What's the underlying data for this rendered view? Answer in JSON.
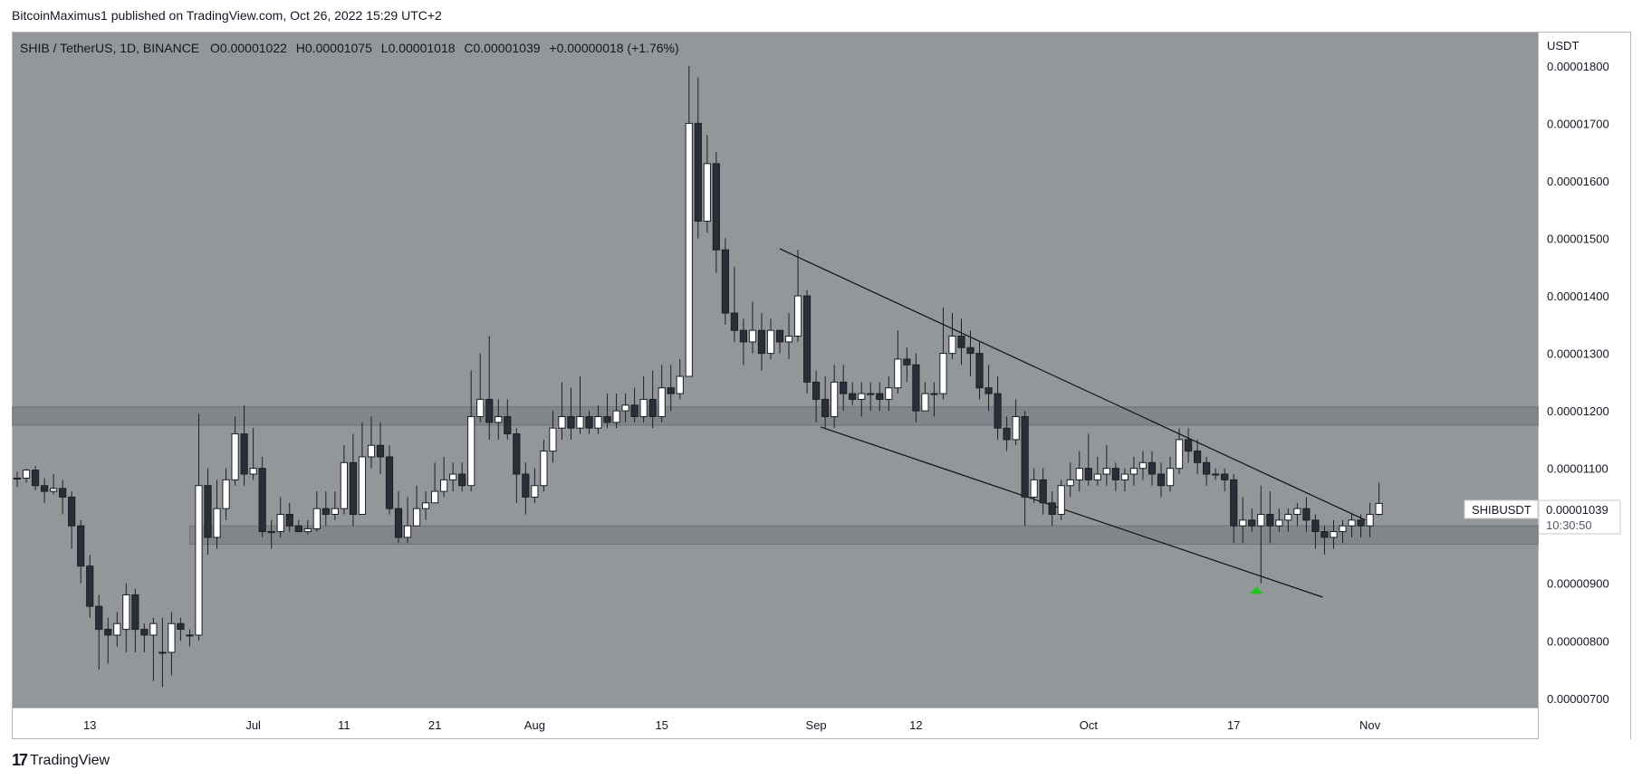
{
  "header": {
    "publisher_line": "BitcoinMaximus1 published on TradingView.com, Oct 26, 2022 15:29 UTC+2"
  },
  "legend": {
    "symbol": "SHIB / TetherUS, 1D, BINANCE",
    "o_label": "O",
    "o_value": "0.00001022",
    "h_label": "H",
    "h_value": "0.00001075",
    "l_label": "L",
    "l_value": "0.00001018",
    "c_label": "C",
    "c_value": "0.00001039",
    "change": "+0.00000018 (+1.76%)"
  },
  "price_tag": {
    "symbol": "SHIBUSDT",
    "price": "0.00001039",
    "countdown": "10:30:50"
  },
  "footer": {
    "logo_text": "TradingView"
  },
  "colors": {
    "background": "#949799",
    "up_fill": "#ffffff",
    "down_fill": "#2a2e39",
    "zone": "#7f8287",
    "line": "#111111",
    "arrow": "#22c322"
  },
  "chart_data": {
    "type": "candlestick",
    "y_axis_label": "USDT",
    "y_ticks": [
      "0.00001800",
      "0.00001700",
      "0.00001600",
      "0.00001500",
      "0.00001400",
      "0.00001300",
      "0.00001200",
      "0.00001100",
      "0.00001000",
      "0.00000900",
      "0.00000800",
      "0.00000700"
    ],
    "y_tick_values": [
      1.8e-05,
      1.7e-05,
      1.6e-05,
      1.5e-05,
      1.4e-05,
      1.3e-05,
      1.2e-05,
      1.1e-05,
      1e-05,
      9e-06,
      8e-06,
      7e-06
    ],
    "ylim": [
      6.84e-06,
      1.858e-05
    ],
    "x_ticks": [
      {
        "label": "13",
        "i": 8
      },
      {
        "label": "Jul",
        "i": 26
      },
      {
        "label": "11",
        "i": 36
      },
      {
        "label": "21",
        "i": 46
      },
      {
        "label": "Aug",
        "i": 57
      },
      {
        "label": "15",
        "i": 71
      },
      {
        "label": "Sep",
        "i": 88
      },
      {
        "label": "12",
        "i": 99
      },
      {
        "label": "Oct",
        "i": 118
      },
      {
        "label": "17",
        "i": 134
      },
      {
        "label": "Nov",
        "i": 149
      }
    ],
    "x_range": [
      -0.5,
      167.5
    ],
    "candles": [
      [
        1.083e-05,
        1.083e-05,
        1.094e-05,
        1.068e-05
      ],
      [
        1.083e-05,
        1.097e-05,
        1.099e-05,
        1.075e-05
      ],
      [
        1.097e-05,
        1.07e-05,
        1.104e-05,
        1.062e-05
      ],
      [
        1.07e-05,
        1.06e-05,
        1.083e-05,
        1.04e-05
      ],
      [
        1.06e-05,
        1.065e-05,
        1.09e-05,
        1.055e-05
      ],
      [
        1.065e-05,
        1.05e-05,
        1.08e-05,
        1.02e-05
      ],
      [
        1.05e-05,
        1e-05,
        1.06e-05,
        9.6e-06
      ],
      [
        1e-05,
        9.3e-06,
        1.01e-05,
        9e-06
      ],
      [
        9.3e-06,
        8.6e-06,
        9.5e-06,
        8.4e-06
      ],
      [
        8.6e-06,
        8.2e-06,
        8.8e-06,
        7.5e-06
      ],
      [
        8.2e-06,
        8.1e-06,
        8.4e-06,
        7.6e-06
      ],
      [
        8.1e-06,
        8.3e-06,
        8.5e-06,
        7.9e-06
      ],
      [
        8.2e-06,
        8.8e-06,
        9e-06,
        7.8e-06
      ],
      [
        8.8e-06,
        8.2e-06,
        8.9e-06,
        7.8e-06
      ],
      [
        8.2e-06,
        8.1e-06,
        8.3e-06,
        7.8e-06
      ],
      [
        8.1e-06,
        8.3e-06,
        8.4e-06,
        7.3e-06
      ],
      [
        7.8e-06,
        7.8e-06,
        8.4e-06,
        7.2e-06
      ],
      [
        7.8e-06,
        8.3e-06,
        8.5e-06,
        7.4e-06
      ],
      [
        8.3e-06,
        8.2e-06,
        8.4e-06,
        8e-06
      ],
      [
        8.1e-06,
        8.1e-06,
        8.2e-06,
        7.9e-06
      ],
      [
        8.1e-06,
        1.07e-05,
        1.195e-05,
        8e-06
      ],
      [
        1.07e-05,
        9.8e-06,
        1.1e-05,
        9.5e-06
      ],
      [
        9.8e-06,
        1.03e-05,
        1.08e-05,
        9.6e-06
      ],
      [
        1.03e-05,
        1.08e-05,
        1.1e-05,
        1.01e-05
      ],
      [
        1.08e-05,
        1.16e-05,
        1.19e-05,
        1.07e-05
      ],
      [
        1.16e-05,
        1.09e-05,
        1.21e-05,
        1.07e-05
      ],
      [
        1.09e-05,
        1.1e-05,
        1.17e-05,
        1.08e-05
      ],
      [
        1.1e-05,
        9.9e-06,
        1.12e-05,
        9.8e-06
      ],
      [
        9.9e-06,
        9.9e-06,
        1.01e-05,
        9.6e-06
      ],
      [
        9.9e-06,
        1.02e-05,
        1.05e-05,
        9.8e-06
      ],
      [
        1.02e-05,
        1e-05,
        1.04e-05,
        9.9e-06
      ],
      [
        1e-05,
        9.9e-06,
        1.01e-05,
        9.9e-06
      ],
      [
        9.9e-06,
        9.95e-06,
        1.01e-05,
        9.85e-06
      ],
      [
        9.95e-06,
        1.03e-05,
        1.06e-05,
        9.9e-06
      ],
      [
        1.03e-05,
        1.02e-05,
        1.06e-05,
        1e-05
      ],
      [
        1.02e-05,
        1.03e-05,
        1.06e-05,
        1.01e-05
      ],
      [
        1.03e-05,
        1.11e-05,
        1.14e-05,
        1.02e-05
      ],
      [
        1.11e-05,
        1.02e-05,
        1.16e-05,
        1e-05
      ],
      [
        1.02e-05,
        1.12e-05,
        1.18e-05,
        1.02e-05
      ],
      [
        1.12e-05,
        1.14e-05,
        1.19e-05,
        1.1e-05
      ],
      [
        1.14e-05,
        1.12e-05,
        1.18e-05,
        1.09e-05
      ],
      [
        1.12e-05,
        1.03e-05,
        1.14e-05,
        1.02e-05
      ],
      [
        1.03e-05,
        9.8e-06,
        1.06e-05,
        9.7e-06
      ],
      [
        9.8e-06,
        1e-05,
        1.05e-05,
        9.7e-06
      ],
      [
        1e-05,
        1.03e-05,
        1.07e-05,
        1e-05
      ],
      [
        1.03e-05,
        1.04e-05,
        1.06e-05,
        1.01e-05
      ],
      [
        1.04e-05,
        1.06e-05,
        1.11e-05,
        1.04e-05
      ],
      [
        1.06e-05,
        1.08e-05,
        1.12e-05,
        1.05e-05
      ],
      [
        1.08e-05,
        1.09e-05,
        1.11e-05,
        1.06e-05
      ],
      [
        1.09e-05,
        1.07e-05,
        1.11e-05,
        1.06e-05
      ],
      [
        1.07e-05,
        1.19e-05,
        1.27e-05,
        1.06e-05
      ],
      [
        1.19e-05,
        1.22e-05,
        1.3e-05,
        1.18e-05
      ],
      [
        1.22e-05,
        1.18e-05,
        1.33e-05,
        1.15e-05
      ],
      [
        1.18e-05,
        1.19e-05,
        1.22e-05,
        1.15e-05
      ],
      [
        1.19e-05,
        1.16e-05,
        1.22e-05,
        1.15e-05
      ],
      [
        1.16e-05,
        1.09e-05,
        1.17e-05,
        1.04e-05
      ],
      [
        1.09e-05,
        1.05e-05,
        1.11e-05,
        1.02e-05
      ],
      [
        1.05e-05,
        1.07e-05,
        1.1e-05,
        1.04e-05
      ],
      [
        1.07e-05,
        1.13e-05,
        1.15e-05,
        1.06e-05
      ],
      [
        1.13e-05,
        1.17e-05,
        1.2e-05,
        1.11e-05
      ],
      [
        1.17e-05,
        1.19e-05,
        1.25e-05,
        1.15e-05
      ],
      [
        1.19e-05,
        1.17e-05,
        1.24e-05,
        1.15e-05
      ],
      [
        1.17e-05,
        1.19e-05,
        1.26e-05,
        1.16e-05
      ],
      [
        1.19e-05,
        1.17e-05,
        1.2e-05,
        1.16e-05
      ],
      [
        1.17e-05,
        1.19e-05,
        1.21e-05,
        1.16e-05
      ],
      [
        1.19e-05,
        1.18e-05,
        1.23e-05,
        1.17e-05
      ],
      [
        1.18e-05,
        1.2e-05,
        1.23e-05,
        1.17e-05
      ],
      [
        1.2e-05,
        1.21e-05,
        1.23e-05,
        1.18e-05
      ],
      [
        1.21e-05,
        1.19e-05,
        1.24e-05,
        1.18e-05
      ],
      [
        1.19e-05,
        1.22e-05,
        1.26e-05,
        1.18e-05
      ],
      [
        1.22e-05,
        1.19e-05,
        1.27e-05,
        1.17e-05
      ],
      [
        1.19e-05,
        1.24e-05,
        1.28e-05,
        1.18e-05
      ],
      [
        1.24e-05,
        1.23e-05,
        1.28e-05,
        1.2e-05
      ],
      [
        1.23e-05,
        1.26e-05,
        1.29e-05,
        1.22e-05
      ],
      [
        1.26e-05,
        1.7e-05,
        1.8e-05,
        1.26e-05
      ],
      [
        1.7e-05,
        1.53e-05,
        1.78e-05,
        1.5e-05
      ],
      [
        1.53e-05,
        1.63e-05,
        1.68e-05,
        1.51e-05
      ],
      [
        1.63e-05,
        1.48e-05,
        1.65e-05,
        1.44e-05
      ],
      [
        1.48e-05,
        1.37e-05,
        1.5e-05,
        1.35e-05
      ],
      [
        1.37e-05,
        1.34e-05,
        1.45e-05,
        1.32e-05
      ],
      [
        1.34e-05,
        1.32e-05,
        1.36e-05,
        1.28e-05
      ],
      [
        1.32e-05,
        1.34e-05,
        1.39e-05,
        1.3e-05
      ],
      [
        1.34e-05,
        1.3e-05,
        1.37e-05,
        1.27e-05
      ],
      [
        1.3e-05,
        1.34e-05,
        1.36e-05,
        1.29e-05
      ],
      [
        1.34e-05,
        1.32e-05,
        1.34e-05,
        1.3e-05
      ],
      [
        1.32e-05,
        1.33e-05,
        1.37e-05,
        1.29e-05
      ],
      [
        1.33e-05,
        1.4e-05,
        1.48e-05,
        1.32e-05
      ],
      [
        1.4e-05,
        1.25e-05,
        1.41e-05,
        1.23e-05
      ],
      [
        1.25e-05,
        1.22e-05,
        1.27e-05,
        1.18e-05
      ],
      [
        1.22e-05,
        1.19e-05,
        1.26e-05,
        1.17e-05
      ],
      [
        1.19e-05,
        1.25e-05,
        1.28e-05,
        1.17e-05
      ],
      [
        1.25e-05,
        1.23e-05,
        1.28e-05,
        1.2e-05
      ],
      [
        1.23e-05,
        1.22e-05,
        1.25e-05,
        1.21e-05
      ],
      [
        1.22e-05,
        1.23e-05,
        1.25e-05,
        1.19e-05
      ],
      [
        1.23e-05,
        1.23e-05,
        1.25e-05,
        1.2e-05
      ],
      [
        1.23e-05,
        1.22e-05,
        1.25e-05,
        1.2e-05
      ],
      [
        1.22e-05,
        1.24e-05,
        1.26e-05,
        1.2e-05
      ],
      [
        1.24e-05,
        1.29e-05,
        1.34e-05,
        1.23e-05
      ],
      [
        1.29e-05,
        1.28e-05,
        1.31e-05,
        1.25e-05
      ],
      [
        1.28e-05,
        1.2e-05,
        1.3e-05,
        1.18e-05
      ],
      [
        1.2e-05,
        1.23e-05,
        1.25e-05,
        1.2e-05
      ],
      [
        1.23e-05,
        1.23e-05,
        1.25e-05,
        1.19e-05
      ],
      [
        1.23e-05,
        1.3e-05,
        1.38e-05,
        1.22e-05
      ],
      [
        1.3e-05,
        1.33e-05,
        1.37e-05,
        1.29e-05
      ],
      [
        1.33e-05,
        1.31e-05,
        1.36e-05,
        1.28e-05
      ],
      [
        1.31e-05,
        1.3e-05,
        1.34e-05,
        1.26e-05
      ],
      [
        1.3e-05,
        1.24e-05,
        1.32e-05,
        1.22e-05
      ],
      [
        1.24e-05,
        1.23e-05,
        1.28e-05,
        1.2e-05
      ],
      [
        1.23e-05,
        1.17e-05,
        1.26e-05,
        1.15e-05
      ],
      [
        1.17e-05,
        1.15e-05,
        1.19e-05,
        1.13e-05
      ],
      [
        1.15e-05,
        1.19e-05,
        1.22e-05,
        1.14e-05
      ],
      [
        1.19e-05,
        1.05e-05,
        1.2e-05,
        1e-05
      ],
      [
        1.05e-05,
        1.08e-05,
        1.1e-05,
        1.04e-05
      ],
      [
        1.08e-05,
        1.04e-05,
        1.1e-05,
        1.02e-05
      ],
      [
        1.04e-05,
        1.02e-05,
        1.06e-05,
        1e-05
      ],
      [
        1.02e-05,
        1.07e-05,
        1.08e-05,
        1.01e-05
      ],
      [
        1.07e-05,
        1.08e-05,
        1.11e-05,
        1.05e-05
      ],
      [
        1.08e-05,
        1.1e-05,
        1.13e-05,
        1.06e-05
      ],
      [
        1.1e-05,
        1.08e-05,
        1.16e-05,
        1.07e-05
      ],
      [
        1.08e-05,
        1.09e-05,
        1.12e-05,
        1.07e-05
      ],
      [
        1.09e-05,
        1.1e-05,
        1.14e-05,
        1.07e-05
      ],
      [
        1.1e-05,
        1.08e-05,
        1.11e-05,
        1.06e-05
      ],
      [
        1.08e-05,
        1.09e-05,
        1.1e-05,
        1.06e-05
      ],
      [
        1.09e-05,
        1.1e-05,
        1.12e-05,
        1.07e-05
      ],
      [
        1.1e-05,
        1.11e-05,
        1.13e-05,
        1.08e-05
      ],
      [
        1.11e-05,
        1.09e-05,
        1.13e-05,
        1.07e-05
      ],
      [
        1.09e-05,
        1.07e-05,
        1.11e-05,
        1.05e-05
      ],
      [
        1.07e-05,
        1.1e-05,
        1.12e-05,
        1.06e-05
      ],
      [
        1.1e-05,
        1.15e-05,
        1.17e-05,
        1.09e-05
      ],
      [
        1.15e-05,
        1.13e-05,
        1.17e-05,
        1.11e-05
      ],
      [
        1.13e-05,
        1.11e-05,
        1.15e-05,
        1.09e-05
      ],
      [
        1.11e-05,
        1.09e-05,
        1.12e-05,
        1.07e-05
      ],
      [
        1.09e-05,
        1.09e-05,
        1.1e-05,
        1.08e-05
      ],
      [
        1.09e-05,
        1.08e-05,
        1.1e-05,
        1.06e-05
      ],
      [
        1.08e-05,
        1e-05,
        1.09e-05,
        9.7e-06
      ],
      [
        1e-05,
        1.01e-05,
        1.05e-05,
        9.7e-06
      ],
      [
        1.01e-05,
        1e-05,
        1.03e-05,
        9.9e-06
      ],
      [
        1e-05,
        1.02e-05,
        1.07e-05,
        9e-06
      ],
      [
        1.02e-05,
        1e-05,
        1.06e-05,
        9.7e-06
      ],
      [
        1e-05,
        1.01e-05,
        1.03e-05,
        9.9e-06
      ],
      [
        1.01e-05,
        1.02e-05,
        1.03e-05,
        9.9e-06
      ],
      [
        1.02e-05,
        1.03e-05,
        1.04e-05,
        1e-05
      ],
      [
        1.03e-05,
        1.01e-05,
        1.05e-05,
        9.9e-06
      ],
      [
        1.01e-05,
        9.9e-06,
        1.02e-05,
        9.6e-06
      ],
      [
        9.9e-06,
        9.8e-06,
        1e-05,
        9.5e-06
      ],
      [
        9.8e-06,
        9.9e-06,
        1.01e-05,
        9.6e-06
      ],
      [
        9.9e-06,
        1e-05,
        1.01e-05,
        9.7e-06
      ],
      [
        1e-05,
        1.01e-05,
        1.02e-05,
        9.8e-06
      ],
      [
        1.01e-05,
        1e-05,
        1.02e-05,
        9.8e-06
      ],
      [
        1e-05,
        1.02e-05,
        1.04e-05,
        9.8e-06
      ],
      [
        1.02e-05,
        1.039e-05,
        1.075e-05,
        1.018e-05
      ]
    ],
    "zones": [
      {
        "y_low": 1.175e-05,
        "y_high": 1.207e-05,
        "i_start": -0.5,
        "i_end": 167.5
      },
      {
        "y_low": 9.68e-06,
        "y_high": 1e-05,
        "i_start": 19,
        "i_end": 167.5
      }
    ],
    "trendlines": [
      {
        "i0": 84,
        "y0": 1.482e-05,
        "i1": 148.5,
        "y1": 1.01e-05
      },
      {
        "i0": 88.5,
        "y0": 1.172e-05,
        "i1": 143.8,
        "y1": 8.76e-06
      }
    ],
    "marker": {
      "i": 136.5,
      "y": 8.88e-06
    }
  }
}
